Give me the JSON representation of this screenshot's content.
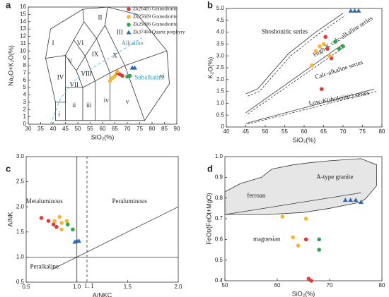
{
  "chart_data": [
    {
      "type": "scatter",
      "panel": "a",
      "xlabel": "SiO₂(%)",
      "ylabel": "Na₂O+K₂O(%)",
      "xlim": [
        30,
        90
      ],
      "xticks": [
        30,
        35,
        40,
        45,
        50,
        55,
        60,
        65,
        70,
        75,
        80,
        85,
        90
      ],
      "ylim": [
        0,
        16
      ],
      "yticks": [
        0,
        1,
        2,
        3,
        4,
        5,
        6,
        7,
        8,
        9,
        10,
        11,
        12,
        13,
        14,
        15,
        16
      ],
      "legend": "upper right",
      "annotations": [
        "I",
        "II",
        "III",
        "IV",
        "V",
        "VI",
        "VII",
        "VIII",
        "IX",
        "X",
        "i",
        "ii",
        "iii",
        "iv",
        "v",
        "vi",
        "Alkaline",
        "Subalkaline"
      ],
      "series": [
        {
          "name": "Zk26405 Granodiorite",
          "color": "#e03a3a",
          "marker": "circle",
          "x": [
            66,
            67,
            68
          ],
          "values": [
            7.0,
            6.8,
            6.6
          ]
        },
        {
          "name": "Zk25609 Granodiorite",
          "color": "#f5b731",
          "marker": "circle",
          "x": [
            63,
            64,
            65,
            66
          ],
          "values": [
            5.9,
            6.3,
            6.6,
            7.2
          ]
        },
        {
          "name": "Zk29406 Granodiorite",
          "color": "#2ba84a",
          "marker": "circle",
          "x": [
            70,
            71
          ],
          "values": [
            6.5,
            6.6
          ]
        },
        {
          "name": "Zk37404 Quartz porphyry",
          "color": "#2b6cb5",
          "marker": "triangle",
          "x": [
            72,
            73
          ],
          "values": [
            7.7,
            7.7
          ]
        }
      ]
    },
    {
      "type": "scatter",
      "panel": "b",
      "xlabel": "SiO₂(%)",
      "ylabel": "K₂O(%)",
      "xlim": [
        40,
        80
      ],
      "xticks": [
        40,
        45,
        50,
        55,
        60,
        65,
        70,
        75,
        80
      ],
      "ylim": [
        0,
        5
      ],
      "yticks": [
        0,
        0.5,
        {
          "value": 1,
          "label": "1.0"
        },
        1.5,
        {
          "value": 2,
          "label": "2.0"
        },
        2.5,
        {
          "value": 3,
          "label": "3.0"
        },
        3.5,
        {
          "value": 4,
          "label": "4.0"
        },
        4.5,
        {
          "value": 5,
          "label": "5.0"
        }
      ],
      "annotations": [
        "Shoshonitic series",
        "High-K calc-alkaline series",
        "Calc-alkaline series",
        "Low-K(tholeiitic) series"
      ],
      "series": [
        {
          "color": "#e03a3a",
          "marker": "circle",
          "x": [
            65.5,
            66,
            67,
            64.5
          ],
          "values": [
            3.8,
            3.3,
            2.9,
            1.6
          ]
        },
        {
          "color": "#f5b731",
          "marker": "circle",
          "x": [
            62,
            63,
            64,
            65,
            66.5
          ],
          "values": [
            2.6,
            3.2,
            3.4,
            3.5,
            3.0
          ]
        },
        {
          "color": "#2ba84a",
          "marker": "circle",
          "x": [
            68,
            69,
            70
          ],
          "values": [
            3.6,
            3.3,
            3.4
          ]
        },
        {
          "color": "#2b6cb5",
          "marker": "triangle",
          "x": [
            72,
            73,
            74
          ],
          "values": [
            4.9,
            4.9,
            4.9
          ]
        }
      ]
    },
    {
      "type": "scatter",
      "panel": "c",
      "xlabel": "A/NKC",
      "ylabel": "A/NK",
      "xlim": [
        0.5,
        2
      ],
      "xticks": [
        0.5,
        {
          "value": 1,
          "label": "1.0"
        },
        1.5,
        {
          "value": 2,
          "label": "2.0"
        }
      ],
      "ylim": [
        0.5,
        3
      ],
      "yticks": [
        0.5,
        {
          "value": 1,
          "label": "1.0"
        },
        1.5,
        {
          "value": 2,
          "label": "2.0"
        },
        2.5,
        {
          "value": 3,
          "label": "3.0"
        }
      ],
      "annotations": [
        "Metaluminous",
        "Peraluminous",
        "Peralkaline",
        "1. 1"
      ],
      "series": [
        {
          "color": "#e03a3a",
          "marker": "circle",
          "x": [
            0.65,
            0.72,
            0.77,
            0.8
          ],
          "values": [
            1.78,
            1.72,
            1.65,
            1.6
          ]
        },
        {
          "color": "#f5b731",
          "marker": "circle",
          "x": [
            0.78,
            0.83,
            0.85,
            0.85,
            0.9
          ],
          "values": [
            1.72,
            1.8,
            1.55,
            1.68,
            1.72
          ]
        },
        {
          "color": "#2ba84a",
          "marker": "circle",
          "x": [
            0.91,
            0.96
          ],
          "values": [
            1.65,
            1.55
          ]
        },
        {
          "color": "#2b6cb5",
          "marker": "triangle",
          "x": [
            0.98,
            1.0,
            1.02
          ],
          "values": [
            1.3,
            1.32,
            1.32
          ]
        }
      ]
    },
    {
      "type": "scatter",
      "panel": "d",
      "xlabel": "SiO₂(%)",
      "ylabel": "FeOt/(FeOt+MgO)",
      "xlim": [
        50,
        80
      ],
      "xticks": [
        50,
        60,
        70,
        80
      ],
      "ylim": [
        0.4,
        1
      ],
      "yticks": [
        0.4,
        0.5,
        0.6,
        0.7,
        0.8,
        0.9,
        {
          "value": 1,
          "label": "1.0"
        }
      ],
      "annotations": [
        "A-type granite",
        "ferroan",
        "magnesian"
      ],
      "series": [
        {
          "color": "#e03a3a",
          "marker": "circle",
          "x": [
            65.5,
            66,
            66.5
          ],
          "values": [
            0.6,
            0.41,
            0.4
          ]
        },
        {
          "color": "#f5b731",
          "marker": "circle",
          "x": [
            61,
            63,
            64,
            65.5
          ],
          "values": [
            0.71,
            0.61,
            0.57,
            0.7
          ]
        },
        {
          "color": "#2ba84a",
          "marker": "circle",
          "x": [
            68,
            68
          ],
          "values": [
            0.6,
            0.55
          ]
        },
        {
          "color": "#2b6cb5",
          "marker": "triangle",
          "x": [
            73,
            74,
            75,
            76
          ],
          "values": [
            0.79,
            0.79,
            0.79,
            0.78
          ]
        }
      ]
    }
  ]
}
